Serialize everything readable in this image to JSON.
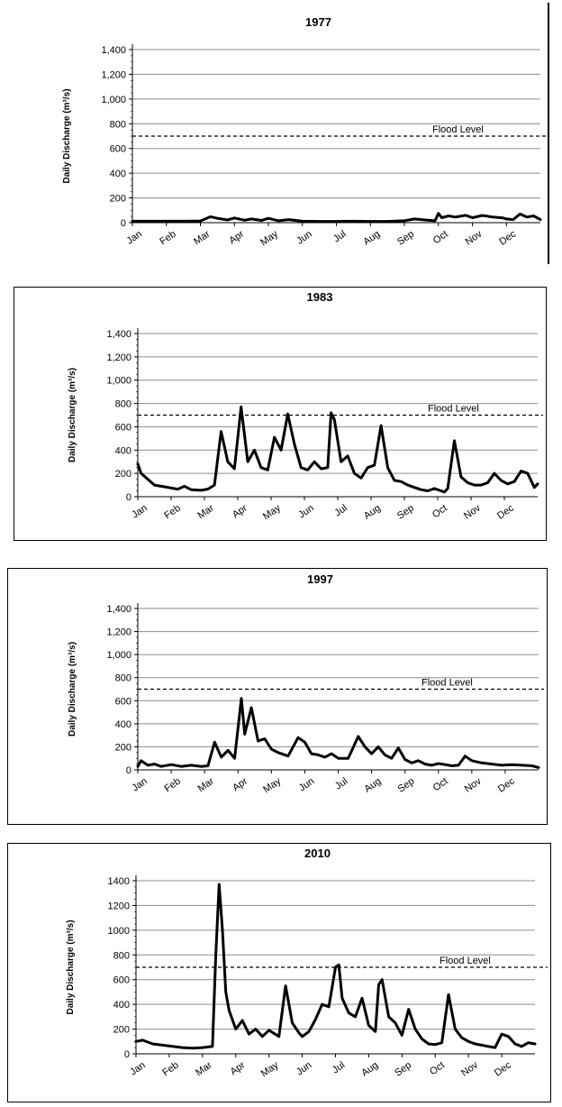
{
  "ylabel": "Daily Discharge (m³/s)",
  "months": [
    "Jan",
    "Feb",
    "Mar",
    "Apr",
    "May",
    "Jun",
    "Jul",
    "Aug",
    "Sep",
    "Oct",
    "Nov",
    "Dec"
  ],
  "flood_label": "Flood Level",
  "chart_data": [
    {
      "type": "line",
      "title": "1977",
      "ylabel": "Daily Discharge (m³/s)",
      "ylim": [
        0,
        1400
      ],
      "yticks": [
        "0",
        "200",
        "400",
        "600",
        "800",
        "1,000",
        "1,200",
        "1,400"
      ],
      "flood_level": 700,
      "grid": true,
      "series": [
        {
          "x": [
            0,
            0.5,
            1,
            1.5,
            2,
            2.3,
            2.5,
            2.8,
            3,
            3.3,
            3.5,
            3.8,
            4,
            4.3,
            4.6,
            5,
            5.5,
            6,
            6.5,
            7,
            7.5,
            8,
            8.3,
            8.6,
            8.9,
            9,
            9.1,
            9.3,
            9.5,
            9.8,
            10,
            10.3,
            10.6,
            10.9,
            11,
            11.2,
            11.4,
            11.6,
            11.8,
            12
          ],
          "y": [
            12,
            12,
            12,
            12,
            14,
            48,
            35,
            22,
            38,
            20,
            30,
            18,
            35,
            15,
            25,
            12,
            10,
            10,
            12,
            10,
            10,
            15,
            30,
            22,
            15,
            75,
            40,
            55,
            45,
            60,
            40,
            58,
            45,
            38,
            30,
            25,
            70,
            45,
            55,
            25
          ]
        }
      ]
    },
    {
      "type": "line",
      "title": "1983",
      "ylabel": "Daily Discharge (m³/s)",
      "ylim": [
        0,
        1400
      ],
      "yticks": [
        "0",
        "200",
        "400",
        "600",
        "800",
        "1,000",
        "1,200",
        "1,400"
      ],
      "flood_level": 700,
      "grid": true,
      "series": [
        {
          "x": [
            0,
            0.1,
            0.3,
            0.5,
            0.8,
            1,
            1.2,
            1.4,
            1.6,
            1.9,
            2.1,
            2.3,
            2.5,
            2.7,
            2.9,
            3.1,
            3.3,
            3.5,
            3.7,
            3.9,
            4.1,
            4.3,
            4.5,
            4.7,
            4.9,
            5.1,
            5.3,
            5.5,
            5.7,
            5.8,
            5.9,
            6.1,
            6.3,
            6.5,
            6.7,
            6.9,
            7.1,
            7.3,
            7.5,
            7.7,
            7.9,
            8.1,
            8.3,
            8.5,
            8.7,
            8.9,
            9.1,
            9.2,
            9.3,
            9.5,
            9.7,
            9.9,
            10.1,
            10.3,
            10.5,
            10.7,
            10.9,
            11.1,
            11.3,
            11.5,
            11.7,
            11.9,
            12
          ],
          "y": [
            280,
            200,
            150,
            100,
            85,
            75,
            65,
            90,
            60,
            55,
            65,
            100,
            560,
            300,
            240,
            770,
            300,
            400,
            250,
            230,
            510,
            400,
            710,
            450,
            250,
            230,
            300,
            240,
            250,
            720,
            660,
            300,
            350,
            200,
            160,
            250,
            270,
            610,
            250,
            140,
            130,
            100,
            80,
            60,
            50,
            70,
            50,
            40,
            70,
            480,
            170,
            120,
            100,
            100,
            120,
            200,
            140,
            110,
            130,
            220,
            200,
            80,
            110
          ]
        }
      ]
    },
    {
      "type": "line",
      "title": "1997",
      "ylabel": "Daily Discharge (m³/s)",
      "ylim": [
        0,
        1400
      ],
      "yticks": [
        "0",
        "200",
        "400",
        "600",
        "800",
        "1,000",
        "1,200",
        "1,400"
      ],
      "flood_level": 700,
      "grid": true,
      "series": [
        {
          "x": [
            0,
            0.1,
            0.3,
            0.5,
            0.7,
            1,
            1.3,
            1.6,
            1.9,
            2.1,
            2.3,
            2.5,
            2.7,
            2.9,
            3.1,
            3.2,
            3.4,
            3.6,
            3.8,
            4,
            4.2,
            4.5,
            4.8,
            5,
            5.2,
            5.4,
            5.6,
            5.8,
            6,
            6.3,
            6.6,
            6.8,
            7,
            7.2,
            7.4,
            7.6,
            7.8,
            8,
            8.2,
            8.4,
            8.6,
            8.8,
            9,
            9.2,
            9.4,
            9.6,
            9.8,
            10,
            10.3,
            10.6,
            10.9,
            11.2,
            11.5,
            11.8,
            12
          ],
          "y": [
            30,
            80,
            40,
            50,
            30,
            45,
            30,
            40,
            30,
            35,
            240,
            110,
            170,
            100,
            620,
            310,
            540,
            250,
            270,
            180,
            150,
            120,
            280,
            240,
            140,
            130,
            110,
            140,
            100,
            100,
            290,
            200,
            140,
            200,
            130,
            100,
            190,
            90,
            60,
            80,
            50,
            40,
            55,
            45,
            35,
            40,
            120,
            80,
            60,
            50,
            40,
            45,
            40,
            35,
            20
          ]
        }
      ]
    },
    {
      "type": "line",
      "title": "2010",
      "ylabel": "Daily Discharge (m³/s)",
      "ylim": [
        0,
        1400
      ],
      "yticks": [
        "0",
        "200",
        "400",
        "600",
        "800",
        "1000",
        "1200",
        "1400"
      ],
      "flood_level": 700,
      "grid": true,
      "series": [
        {
          "x": [
            0,
            0.2,
            0.5,
            0.8,
            1.1,
            1.4,
            1.7,
            2,
            2.3,
            2.4,
            2.5,
            2.6,
            2.7,
            2.8,
            3,
            3.2,
            3.4,
            3.6,
            3.8,
            4,
            4.3,
            4.5,
            4.7,
            4.9,
            5,
            5.2,
            5.4,
            5.6,
            5.8,
            6,
            6.1,
            6.2,
            6.4,
            6.6,
            6.8,
            7,
            7.2,
            7.3,
            7.4,
            7.6,
            7.8,
            8,
            8.2,
            8.4,
            8.6,
            8.8,
            9,
            9.2,
            9.4,
            9.6,
            9.8,
            10,
            10.2,
            10.4,
            10.6,
            10.8,
            11,
            11.2,
            11.4,
            11.6,
            11.8,
            12
          ],
          "y": [
            100,
            110,
            80,
            70,
            60,
            50,
            45,
            50,
            60,
            800,
            1370,
            1000,
            500,
            350,
            200,
            270,
            160,
            200,
            140,
            190,
            140,
            550,
            250,
            170,
            140,
            180,
            280,
            400,
            380,
            700,
            720,
            450,
            330,
            300,
            450,
            230,
            180,
            560,
            600,
            300,
            250,
            150,
            360,
            200,
            120,
            80,
            75,
            90,
            480,
            200,
            130,
            100,
            80,
            70,
            60,
            50,
            160,
            140,
            80,
            60,
            90,
            80
          ]
        }
      ]
    }
  ]
}
